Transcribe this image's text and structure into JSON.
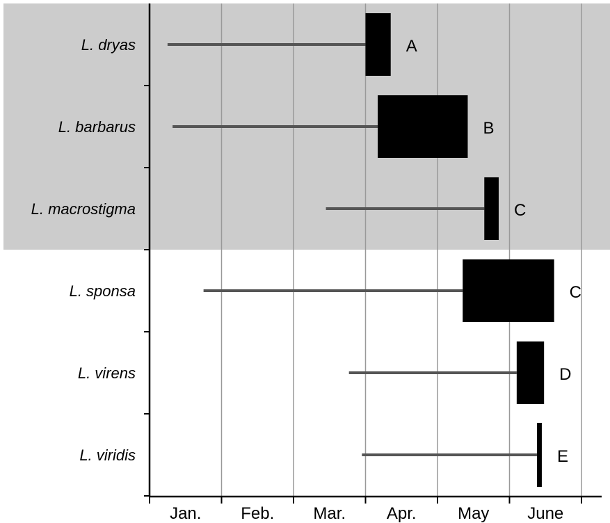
{
  "chart_data": {
    "type": "bar",
    "x_axis": {
      "unit": "month",
      "range": [
        0,
        6.0
      ],
      "tick_labels": [
        "Jan.",
        "Feb.",
        "Mar.",
        "Apr.",
        "May",
        "June"
      ],
      "grid": true
    },
    "shaded_group": {
      "species": [
        "L. dryas",
        "L. barbarus",
        "L. macrostigma"
      ],
      "color": "#cccccc"
    },
    "series": [
      {
        "species": "L. dryas",
        "line_start": 0.25,
        "bar_start": 3.0,
        "bar_end": 3.35,
        "group": "A"
      },
      {
        "species": "L. barbarus",
        "line_start": 0.32,
        "bar_start": 3.17,
        "bar_end": 4.42,
        "group": "B"
      },
      {
        "species": "L. macrostigma",
        "line_start": 2.45,
        "bar_start": 4.65,
        "bar_end": 4.85,
        "group": "C"
      },
      {
        "species": "L. sponsa",
        "line_start": 0.75,
        "bar_start": 4.35,
        "bar_end": 5.62,
        "group": "C"
      },
      {
        "species": "L. virens",
        "line_start": 2.77,
        "bar_start": 5.1,
        "bar_end": 5.48,
        "group": "D"
      },
      {
        "species": "L. viridis",
        "line_start": 2.95,
        "bar_start": 5.39,
        "bar_end": 5.44,
        "group": "E"
      }
    ],
    "colors": {
      "bar": "#000000",
      "line": "#555555",
      "grid": "#999999",
      "shade": "#cccccc"
    }
  }
}
